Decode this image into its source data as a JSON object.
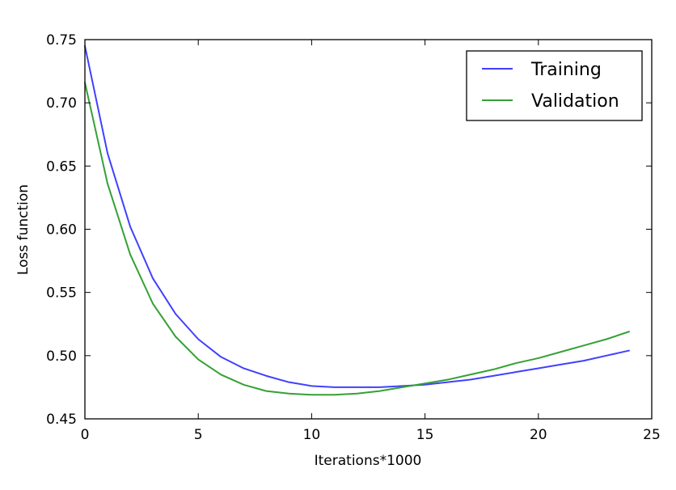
{
  "chart_data": {
    "type": "line",
    "title": "",
    "xlabel": "Iterations*1000",
    "ylabel": "Loss function",
    "xlim": [
      0,
      25
    ],
    "ylim": [
      0.45,
      0.75
    ],
    "x_ticks": [
      0,
      5,
      10,
      15,
      20,
      25
    ],
    "x_tick_labels": [
      "0",
      "5",
      "10",
      "15",
      "20",
      "25"
    ],
    "y_ticks": [
      0.45,
      0.5,
      0.55,
      0.6,
      0.65,
      0.7,
      0.75
    ],
    "y_tick_labels": [
      "0.45",
      "0.50",
      "0.55",
      "0.60",
      "0.65",
      "0.70",
      "0.75"
    ],
    "grid": false,
    "legend_position": "top-right",
    "x": [
      0,
      1,
      2,
      3,
      4,
      5,
      6,
      7,
      8,
      9,
      10,
      11,
      12,
      13,
      14,
      15,
      16,
      17,
      18,
      19,
      20,
      21,
      22,
      23,
      24
    ],
    "series": [
      {
        "name": "Training",
        "color": "#4040ff",
        "values": [
          0.745,
          0.66,
          0.602,
          0.561,
          0.533,
          0.513,
          0.499,
          0.49,
          0.484,
          0.479,
          0.476,
          0.475,
          0.475,
          0.475,
          0.476,
          0.477,
          0.479,
          0.481,
          0.484,
          0.487,
          0.49,
          0.493,
          0.496,
          0.5,
          0.504
        ]
      },
      {
        "name": "Validation",
        "color": "#34a134",
        "values": [
          0.716,
          0.636,
          0.58,
          0.541,
          0.515,
          0.497,
          0.485,
          0.477,
          0.472,
          0.47,
          0.469,
          0.469,
          0.47,
          0.472,
          0.475,
          0.478,
          0.481,
          0.485,
          0.489,
          0.494,
          0.498,
          0.503,
          0.508,
          0.513,
          0.519
        ]
      }
    ]
  }
}
